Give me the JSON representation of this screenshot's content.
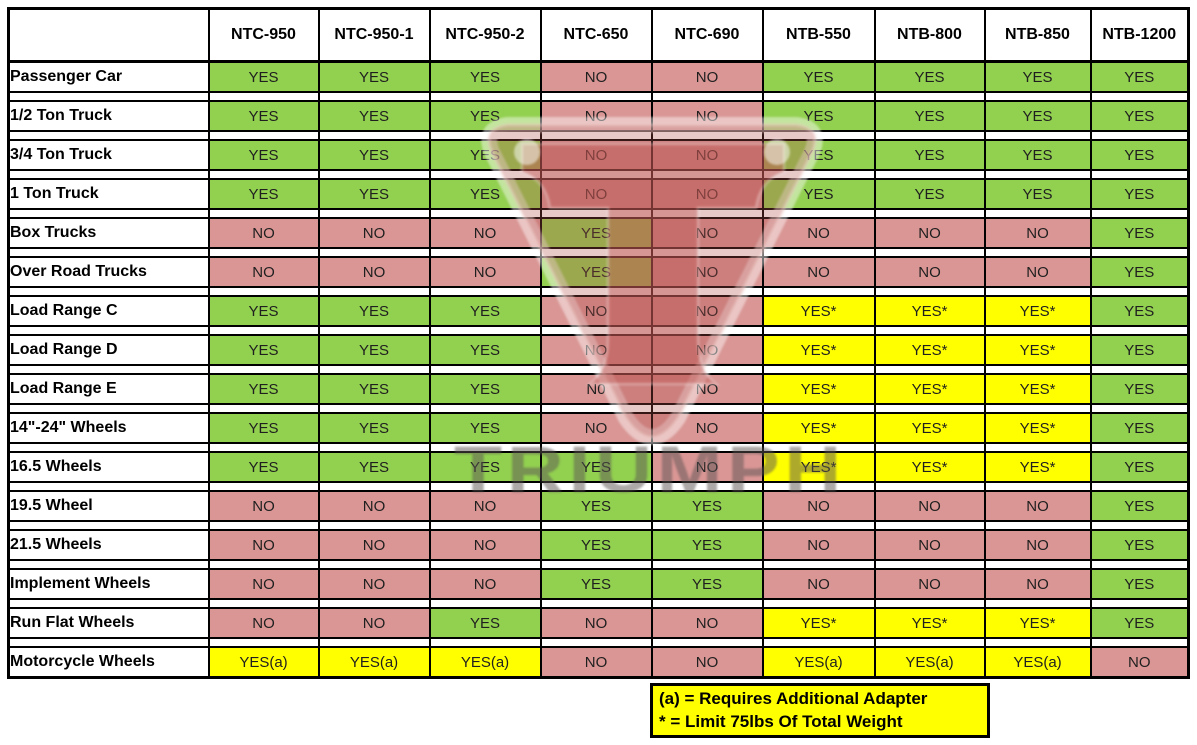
{
  "chart_data": {
    "type": "table",
    "title": "",
    "columns": [
      "NTC-950",
      "NTC-950-1",
      "NTC-950-2",
      "NTC-650",
      "NTC-690",
      "NTB-550",
      "NTB-800",
      "NTB-850",
      "NTB-1200"
    ],
    "rows": [
      {
        "label": "Passenger Car",
        "values": [
          "YES",
          "YES",
          "YES",
          "NO",
          "NO",
          "YES",
          "YES",
          "YES",
          "YES"
        ]
      },
      {
        "label": "1/2 Ton Truck",
        "values": [
          "YES",
          "YES",
          "YES",
          "NO",
          "NO",
          "YES",
          "YES",
          "YES",
          "YES"
        ]
      },
      {
        "label": "3/4 Ton Truck",
        "values": [
          "YES",
          "YES",
          "YES",
          "NO",
          "NO",
          "YES",
          "YES",
          "YES",
          "YES"
        ]
      },
      {
        "label": "1 Ton Truck",
        "values": [
          "YES",
          "YES",
          "YES",
          "NO",
          "NO",
          "YES",
          "YES",
          "YES",
          "YES"
        ]
      },
      {
        "label": "Box Trucks",
        "values": [
          "NO",
          "NO",
          "NO",
          "YES",
          "NO",
          "NO",
          "NO",
          "NO",
          "YES"
        ]
      },
      {
        "label": "Over Road Trucks",
        "values": [
          "NO",
          "NO",
          "NO",
          "YES",
          "NO",
          "NO",
          "NO",
          "NO",
          "YES"
        ]
      },
      {
        "label": "Load Range C",
        "values": [
          "YES",
          "YES",
          "YES",
          "NO",
          "NO",
          "YES*",
          "YES*",
          "YES*",
          "YES"
        ]
      },
      {
        "label": "Load Range D",
        "values": [
          "YES",
          "YES",
          "YES",
          "NO",
          "NO",
          "YES*",
          "YES*",
          "YES*",
          "YES"
        ]
      },
      {
        "label": "Load Range E",
        "values": [
          "YES",
          "YES",
          "YES",
          "N0",
          "NO",
          "YES*",
          "YES*",
          "YES*",
          "YES"
        ]
      },
      {
        "label": "14\"-24\" Wheels",
        "values": [
          "YES",
          "YES",
          "YES",
          "NO",
          "NO",
          "YES*",
          "YES*",
          "YES*",
          "YES"
        ]
      },
      {
        "label": "16.5 Wheels",
        "values": [
          "YES",
          "YES",
          "YES",
          "YES",
          "NO",
          "YES*",
          "YES*",
          "YES*",
          "YES"
        ]
      },
      {
        "label": "19.5 Wheel",
        "values": [
          "NO",
          "NO",
          "NO",
          "YES",
          "YES",
          "NO",
          "NO",
          "NO",
          "YES"
        ]
      },
      {
        "label": "21.5 Wheels",
        "values": [
          "NO",
          "NO",
          "NO",
          "YES",
          "YES",
          "NO",
          "NO",
          "NO",
          "YES"
        ]
      },
      {
        "label": "Implement Wheels",
        "values": [
          "NO",
          "NO",
          "NO",
          "YES",
          "YES",
          "NO",
          "NO",
          "NO",
          "YES"
        ]
      },
      {
        "label": "Run Flat Wheels",
        "values": [
          "NO",
          "NO",
          "YES",
          "NO",
          "NO",
          "YES*",
          "YES*",
          "YES*",
          "YES"
        ]
      },
      {
        "label": "Motorcycle Wheels",
        "values": [
          "YES(a)",
          "YES(a)",
          "YES(a)",
          "NO",
          "NO",
          "YES(a)",
          "YES(a)",
          "YES(a)",
          "NO"
        ]
      }
    ],
    "notes": [
      "(a) = Requires Additional Adapter",
      "* = Limit 75lbs Of Total Weight"
    ],
    "cell_colors": {
      "YES": "#92D050",
      "NO": "#D99694",
      "N0": "#D99694",
      "YES*": "#FFFF00",
      "YES(a)": "#FFFF00"
    },
    "notes_bg": "#FFFF00",
    "header_bg": "#FFFFFF",
    "grid": true,
    "legend_position": "bottom-center",
    "watermark": "TRIUMPH"
  }
}
